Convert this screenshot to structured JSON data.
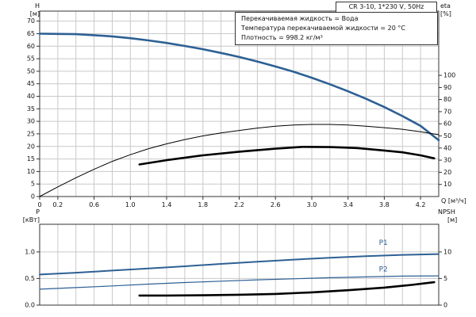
{
  "colors": {
    "curve_blue": "#2d6094",
    "curve_black": "#000000",
    "grid": "#c9c9c9",
    "axis": "#333333",
    "text": "#111111"
  },
  "chart_data": [
    {
      "name": "head-efficiency-chart",
      "type": "line",
      "title": "CR 3-10, 1*230 V, 50Hz",
      "annotations": [
        "Перекачиваемая жидкость = Вода",
        "Температура перекачиваемой жидкости = 20 °C",
        "Плотность = 998.2 кг/м³"
      ],
      "xlabel": "Q [м³/ч]",
      "xlim": [
        0,
        4.4
      ],
      "x_grid_step": 0.2,
      "x_ticks": [
        {
          "v": 0,
          "label": "0"
        },
        {
          "v": 0.2,
          "label": "0.2"
        },
        {
          "v": 0.6,
          "label": "0.6"
        },
        {
          "v": 1.0,
          "label": "1.0"
        },
        {
          "v": 1.4,
          "label": "1.4"
        },
        {
          "v": 1.8,
          "label": "1.8"
        },
        {
          "v": 2.2,
          "label": "2.2"
        },
        {
          "v": 2.6,
          "label": "2.6"
        },
        {
          "v": 3.0,
          "label": "3.0"
        },
        {
          "v": 3.4,
          "label": "3.4"
        },
        {
          "v": 3.8,
          "label": "3.8"
        },
        {
          "v": 4.2,
          "label": "4.2"
        }
      ],
      "left_axis": {
        "label": "H",
        "unit": "[м]",
        "lim": [
          0,
          74
        ],
        "ticks": [
          {
            "v": 0,
            "label": "0"
          },
          {
            "v": 5,
            "label": "5"
          },
          {
            "v": 10,
            "label": "10"
          },
          {
            "v": 15,
            "label": "15"
          },
          {
            "v": 20,
            "label": "20"
          },
          {
            "v": 25,
            "label": "25"
          },
          {
            "v": 30,
            "label": "30"
          },
          {
            "v": 35,
            "label": "35"
          },
          {
            "v": 40,
            "label": "40"
          },
          {
            "v": 45,
            "label": "45"
          },
          {
            "v": 50,
            "label": "50"
          },
          {
            "v": 55,
            "label": "55"
          },
          {
            "v": 60,
            "label": "60"
          },
          {
            "v": 65,
            "label": "65"
          },
          {
            "v": 70,
            "label": "70"
          }
        ]
      },
      "right_axis": {
        "label": "eta",
        "unit": "[%]",
        "lim": [
          0,
          153
        ],
        "ticks": [
          {
            "v": 10,
            "label": "10"
          },
          {
            "v": 20,
            "label": "20"
          },
          {
            "v": 30,
            "label": "30"
          },
          {
            "v": 40,
            "label": "40"
          },
          {
            "v": 50,
            "label": "50"
          },
          {
            "v": 60,
            "label": "60"
          },
          {
            "v": 70,
            "label": "70"
          },
          {
            "v": 80,
            "label": "80"
          },
          {
            "v": 90,
            "label": "90"
          },
          {
            "v": 100,
            "label": "100"
          }
        ]
      },
      "series": [
        {
          "name": "hq-curve",
          "axis": "left",
          "color": "#2d6094",
          "width": 2.6,
          "points": [
            [
              0,
              65
            ],
            [
              0.2,
              64.9
            ],
            [
              0.4,
              64.8
            ],
            [
              0.6,
              64.4
            ],
            [
              0.8,
              63.9
            ],
            [
              1,
              63.2
            ],
            [
              1.2,
              62.3
            ],
            [
              1.4,
              61.3
            ],
            [
              1.6,
              60.1
            ],
            [
              1.8,
              58.8
            ],
            [
              2,
              57.3
            ],
            [
              2.2,
              55.7
            ],
            [
              2.4,
              53.9
            ],
            [
              2.6,
              51.9
            ],
            [
              2.8,
              49.8
            ],
            [
              3,
              47.4
            ],
            [
              3.2,
              44.8
            ],
            [
              3.4,
              42
            ],
            [
              3.6,
              39
            ],
            [
              3.8,
              35.7
            ],
            [
              4,
              32.1
            ],
            [
              4.2,
              28.2
            ],
            [
              4.4,
              22.5
            ]
          ]
        },
        {
          "name": "eta-curve-thin",
          "axis": "right",
          "color": "#000000",
          "width": 1,
          "points": [
            [
              0,
              0
            ],
            [
              0.2,
              8
            ],
            [
              0.4,
              15.5
            ],
            [
              0.6,
              22.5
            ],
            [
              0.8,
              29
            ],
            [
              1,
              34.5
            ],
            [
              1.2,
              39.5
            ],
            [
              1.4,
              43.5
            ],
            [
              1.6,
              47
            ],
            [
              1.8,
              50
            ],
            [
              2,
              52.5
            ],
            [
              2.2,
              54.5
            ],
            [
              2.4,
              56.5
            ],
            [
              2.6,
              58
            ],
            [
              2.8,
              59
            ],
            [
              3,
              59.5
            ],
            [
              3.2,
              59.5
            ],
            [
              3.4,
              59
            ],
            [
              3.6,
              58
            ],
            [
              3.8,
              56.8
            ],
            [
              4,
              55.5
            ],
            [
              4.2,
              53.5
            ],
            [
              4.4,
              51
            ]
          ]
        },
        {
          "name": "eta-curve-thick",
          "axis": "right",
          "color": "#000000",
          "width": 2.6,
          "points": [
            [
              1.1,
              26.5
            ],
            [
              1.4,
              30
            ],
            [
              1.8,
              34
            ],
            [
              2.2,
              37
            ],
            [
              2.6,
              39.5
            ],
            [
              2.9,
              41
            ],
            [
              3.2,
              40.8
            ],
            [
              3.5,
              40
            ],
            [
              3.8,
              38
            ],
            [
              4,
              36.5
            ],
            [
              4.2,
              34
            ],
            [
              4.35,
              31.5
            ]
          ]
        }
      ]
    },
    {
      "name": "power-npsh-chart",
      "type": "line",
      "title": "",
      "xlabel": "",
      "xlim": [
        0,
        4.4
      ],
      "x_grid_step": 0.2,
      "left_axis": {
        "label": "P",
        "unit": "[кВт]",
        "lim": [
          0,
          1.52
        ],
        "ticks": [
          {
            "v": 0,
            "label": "0.0"
          },
          {
            "v": 0.5,
            "label": "0.5"
          },
          {
            "v": 1.0,
            "label": "1.0"
          }
        ]
      },
      "right_axis": {
        "label": "NPSH",
        "unit": "[м]",
        "lim": [
          0,
          15.2
        ],
        "ticks": [
          {
            "v": 0,
            "label": "0"
          },
          {
            "v": 5,
            "label": "5"
          },
          {
            "v": 10,
            "label": "10"
          }
        ]
      },
      "series": [
        {
          "name": "p1-curve",
          "axis": "left",
          "color": "#2d6094",
          "width": 2,
          "points": [
            [
              0,
              0.575
            ],
            [
              0.4,
              0.61
            ],
            [
              0.8,
              0.65
            ],
            [
              1.2,
              0.69
            ],
            [
              1.6,
              0.73
            ],
            [
              2,
              0.775
            ],
            [
              2.4,
              0.815
            ],
            [
              2.8,
              0.855
            ],
            [
              3.2,
              0.89
            ],
            [
              3.6,
              0.92
            ],
            [
              4,
              0.945
            ],
            [
              4.4,
              0.96
            ]
          ]
        },
        {
          "name": "p2-curve",
          "axis": "left",
          "color": "#2d6094",
          "width": 1.2,
          "points": [
            [
              0,
              0.3
            ],
            [
              0.4,
              0.33
            ],
            [
              0.8,
              0.36
            ],
            [
              1.2,
              0.395
            ],
            [
              1.6,
              0.425
            ],
            [
              2,
              0.45
            ],
            [
              2.4,
              0.475
            ],
            [
              2.8,
              0.495
            ],
            [
              3.2,
              0.515
            ],
            [
              3.6,
              0.53
            ],
            [
              4,
              0.545
            ],
            [
              4.4,
              0.55
            ]
          ]
        },
        {
          "name": "npsh-curve",
          "axis": "right",
          "color": "#000000",
          "width": 2.6,
          "points": [
            [
              1.1,
              1.8
            ],
            [
              1.4,
              1.8
            ],
            [
              1.8,
              1.85
            ],
            [
              2.2,
              1.95
            ],
            [
              2.6,
              2.1
            ],
            [
              3,
              2.4
            ],
            [
              3.4,
              2.8
            ],
            [
              3.8,
              3.3
            ],
            [
              4.1,
              3.8
            ],
            [
              4.35,
              4.3
            ]
          ]
        }
      ],
      "series_labels": [
        {
          "text": "P1",
          "x": 3.74,
          "y": 1.13,
          "axis": "left",
          "color": "#2d6094"
        },
        {
          "text": "P2",
          "x": 3.74,
          "y": 0.63,
          "axis": "left",
          "color": "#2d6094"
        }
      ]
    }
  ]
}
